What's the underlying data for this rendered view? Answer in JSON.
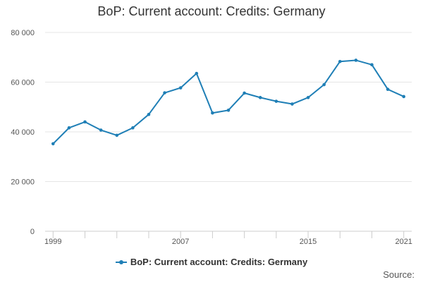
{
  "chart_data": {
    "type": "line",
    "title": "BoP: Current account: Credits: Germany",
    "xlabel": "",
    "ylabel": "",
    "x": [
      1999,
      2000,
      2001,
      2002,
      2003,
      2004,
      2005,
      2006,
      2007,
      2008,
      2009,
      2010,
      2011,
      2012,
      2013,
      2014,
      2015,
      2016,
      2017,
      2018,
      2019,
      2020,
      2021
    ],
    "x_tick_labels": [
      "1999",
      "2007",
      "2015",
      "2021"
    ],
    "x_tick_values": [
      1999,
      2007,
      2015,
      2021
    ],
    "y_tick_labels": [
      "0",
      "20 000",
      "40 000",
      "60 000",
      "80 000"
    ],
    "y_tick_values": [
      0,
      20000,
      40000,
      60000,
      80000
    ],
    "ylim": [
      0,
      80000
    ],
    "grid": true,
    "legend_position": "bottom",
    "series": [
      {
        "name": "BoP: Current account: Credits: Germany",
        "color": "#1f7fb6",
        "values": [
          35200,
          41600,
          44000,
          40700,
          38600,
          41600,
          47000,
          55700,
          57700,
          63500,
          47600,
          48700,
          55600,
          53800,
          52300,
          51200,
          53800,
          59000,
          68300,
          68800,
          67000,
          57100,
          54200
        ]
      }
    ],
    "source_label": "Source:"
  }
}
